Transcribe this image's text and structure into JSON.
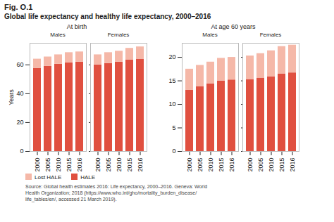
{
  "title": "Fig. O.1",
  "subtitle": "Global life expectancy and healthy life expectancy, 2000–2016",
  "caption": "Source: Global health estimates 2016: Life expectancy, 2000–2016. Geneva: World\nHealth Organization; 2018 (https://www.who.int/gho/mortality_burden_disease/\nlife_tables/en/, accessed 21 March 2019).",
  "chart_data": [
    {
      "type": "bar",
      "stacked": true,
      "title": "At birth",
      "subtitle": "Males",
      "ylabel": "Years",
      "categories": [
        "2000",
        "2005",
        "2010",
        "2015",
        "2016"
      ],
      "series": [
        {
          "name": "HALE",
          "color": "#E05040",
          "values": [
            57.5,
            59.0,
            60.5,
            61.5,
            62.0
          ]
        },
        {
          "name": "Lost HALE",
          "color": "#F5B8A8",
          "values": [
            6.5,
            6.5,
            6.5,
            7.0,
            7.0
          ]
        }
      ],
      "ylim": [
        0,
        75
      ],
      "yticks": [
        0,
        20,
        40,
        60
      ]
    },
    {
      "type": "bar",
      "stacked": true,
      "title": "At birth",
      "subtitle": "Females",
      "tick_labels": "x",
      "categories": [
        "2000",
        "2005",
        "2010",
        "2015",
        "2016"
      ],
      "series": [
        {
          "name": "HALE",
          "color": "#E05040",
          "values": [
            60.0,
            61.0,
            62.0,
            63.5,
            64.0
          ]
        },
        {
          "name": "Lost HALE",
          "color": "#F5B8A8",
          "values": [
            7.0,
            7.5,
            7.5,
            8.0,
            8.5
          ]
        }
      ],
      "ylim": [
        0,
        75
      ],
      "yticks": [
        0,
        20,
        40,
        60
      ]
    },
    {
      "type": "bar",
      "stacked": true,
      "title": "At age 60 years",
      "subtitle": "Males",
      "categories": [
        "2000",
        "2005",
        "2010",
        "2015",
        "2016"
      ],
      "series": [
        {
          "name": "HALE",
          "color": "#E05040",
          "values": [
            13.0,
            13.8,
            14.4,
            15.0,
            15.2
          ]
        },
        {
          "name": "Lost HALE",
          "color": "#F5B8A8",
          "values": [
            4.5,
            4.5,
            4.6,
            4.8,
            4.8
          ]
        }
      ],
      "ylim": [
        0,
        23
      ],
      "yticks": [
        0,
        5,
        10,
        15,
        20
      ]
    },
    {
      "type": "bar",
      "stacked": true,
      "title": "At age 60 years",
      "subtitle": "Females",
      "tick_labels": "x",
      "categories": [
        "2000",
        "2005",
        "2010",
        "2015",
        "2016"
      ],
      "series": [
        {
          "name": "HALE",
          "color": "#E05040",
          "values": [
            15.3,
            15.6,
            15.9,
            16.5,
            16.7
          ]
        },
        {
          "name": "Lost HALE",
          "color": "#F5B8A8",
          "values": [
            5.0,
            5.2,
            5.5,
            5.8,
            5.9
          ]
        }
      ],
      "ylim": [
        0,
        23
      ],
      "yticks": [
        0,
        5,
        10,
        15,
        20
      ]
    }
  ]
}
